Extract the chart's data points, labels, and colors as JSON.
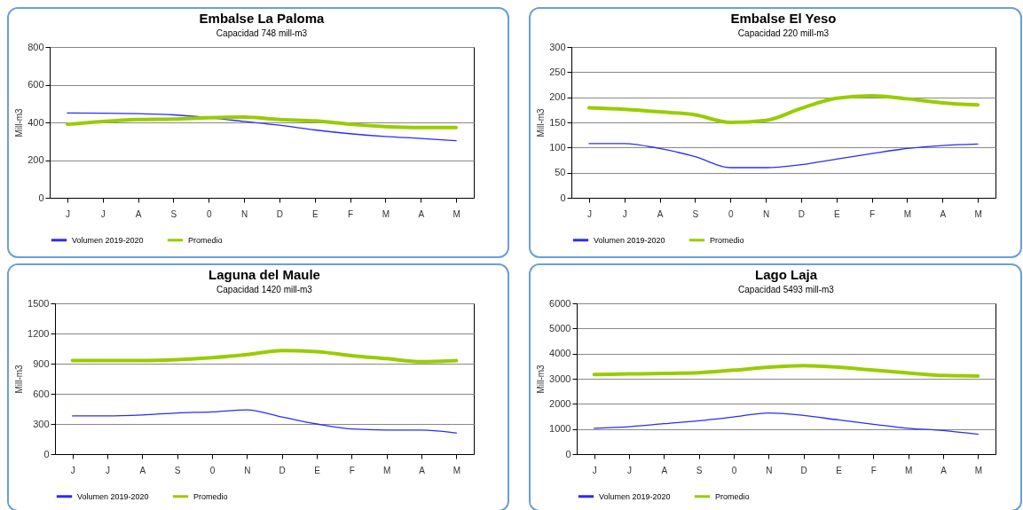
{
  "chart_data": [
    {
      "type": "line",
      "title": "Embalse La Paloma",
      "subtitle": "Capacidad 748 mill-m3",
      "ylabel": "Mill-m3",
      "categories": [
        "J",
        "J",
        "A",
        "S",
        "0",
        "N",
        "D",
        "E",
        "F",
        "M",
        "A",
        "M"
      ],
      "ylim": [
        0,
        800
      ],
      "yticks": [
        0,
        200,
        400,
        600,
        800
      ],
      "grid": "y",
      "legend": "bottom",
      "series": [
        {
          "name": "Volumen 2019-2020",
          "color": "#2b2bff",
          "values": [
            450,
            449,
            446,
            440,
            425,
            405,
            385,
            360,
            340,
            325,
            315,
            303
          ]
        },
        {
          "name": "Promedio",
          "color": "#99cc00",
          "values": [
            390,
            405,
            415,
            418,
            425,
            428,
            415,
            408,
            390,
            378,
            373,
            373
          ]
        }
      ]
    },
    {
      "type": "line",
      "title": "Embalse El Yeso",
      "subtitle": "Capacidad 220 mill-m3",
      "ylabel": "Mill-m3",
      "categories": [
        "J",
        "J",
        "A",
        "S",
        "0",
        "N",
        "D",
        "E",
        "F",
        "M",
        "A",
        "M"
      ],
      "ylim": [
        0,
        300
      ],
      "yticks": [
        0,
        50,
        100,
        150,
        200,
        250,
        300
      ],
      "grid": "y",
      "legend": "bottom",
      "series": [
        {
          "name": "Volumen 2019-2020",
          "color": "#2b2bff",
          "values": [
            108,
            108,
            98,
            82,
            60,
            60,
            66,
            77,
            88,
            98,
            104,
            107
          ]
        },
        {
          "name": "Promedio",
          "color": "#99cc00",
          "values": [
            179,
            176,
            171,
            165,
            150,
            154,
            178,
            198,
            203,
            197,
            189,
            185
          ]
        }
      ]
    },
    {
      "type": "line",
      "title": "Laguna del Maule",
      "subtitle": "Capacidad  1420 mill-m3",
      "ylabel": "Mill-m3",
      "categories": [
        "J",
        "J",
        "A",
        "S",
        "0",
        "N",
        "D",
        "E",
        "F",
        "M",
        "A",
        "M"
      ],
      "ylim": [
        0,
        1500
      ],
      "yticks": [
        0,
        300,
        600,
        900,
        1200,
        1500
      ],
      "grid": "y",
      "legend": "bottom",
      "series": [
        {
          "name": "Volumen 2019-2020",
          "color": "#2b2bff",
          "values": [
            380,
            380,
            390,
            410,
            420,
            440,
            370,
            300,
            250,
            240,
            240,
            210
          ]
        },
        {
          "name": "Promedio",
          "color": "#99cc00",
          "values": [
            930,
            930,
            930,
            940,
            960,
            990,
            1030,
            1020,
            980,
            950,
            920,
            930
          ]
        }
      ]
    },
    {
      "type": "line",
      "title": "Lago Laja",
      "subtitle": "Capacidad  5493 mill-m3",
      "ylabel": "Mill-m3",
      "categories": [
        "J",
        "J",
        "A",
        "S",
        "0",
        "N",
        "D",
        "E",
        "F",
        "M",
        "A",
        "M"
      ],
      "ylim": [
        0,
        6000
      ],
      "yticks": [
        0,
        1000,
        2000,
        3000,
        4000,
        5000,
        6000
      ],
      "grid": "y",
      "legend": "bottom",
      "series": [
        {
          "name": "Volumen 2019-2020",
          "color": "#2b2bff",
          "values": [
            1030,
            1090,
            1210,
            1330,
            1480,
            1640,
            1540,
            1360,
            1190,
            1030,
            940,
            790
          ]
        },
        {
          "name": "Promedio",
          "color": "#99cc00",
          "values": [
            3170,
            3190,
            3210,
            3240,
            3340,
            3460,
            3520,
            3460,
            3340,
            3230,
            3130,
            3110
          ]
        }
      ]
    }
  ]
}
